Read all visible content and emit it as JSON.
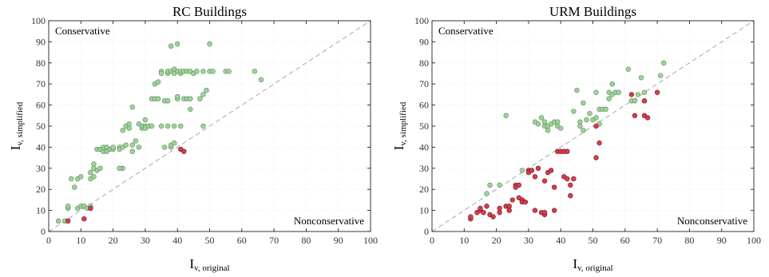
{
  "colors": {
    "conservative": "#9fd39a",
    "conservative_edge": "#5a8a55",
    "nonconservative": "#d43d4d",
    "nonconservative_edge": "#7a1a24"
  },
  "chart_data": [
    {
      "type": "scatter",
      "title": "RC Buildings",
      "xlabel": {
        "main": "I",
        "sub": "v, original"
      },
      "ylabel": {
        "main": "I",
        "sub": "v, simplified"
      },
      "xlim": [
        0,
        100
      ],
      "ylim": [
        0,
        100
      ],
      "xticks": [
        0,
        10,
        20,
        30,
        40,
        50,
        60,
        70,
        80,
        90,
        100
      ],
      "yticks": [
        0,
        10,
        20,
        30,
        40,
        50,
        60,
        70,
        80,
        90,
        100
      ],
      "grid": true,
      "annotations": [
        {
          "text": "Conservative",
          "position": "top-left"
        },
        {
          "text": "Nonconservative",
          "position": "bottom-right"
        }
      ],
      "series": [
        {
          "class": "conservative",
          "points": [
            [
              3,
              5
            ],
            [
              5,
              5
            ],
            [
              6,
              11
            ],
            [
              6,
              12
            ],
            [
              7,
              25
            ],
            [
              8,
              21
            ],
            [
              9,
              25
            ],
            [
              10,
              26
            ],
            [
              9,
              11
            ],
            [
              10,
              12
            ],
            [
              11,
              12
            ],
            [
              12,
              11
            ],
            [
              13,
              12
            ],
            [
              13,
              25
            ],
            [
              13,
              28
            ],
            [
              14,
              32
            ],
            [
              14,
              26
            ],
            [
              14,
              30
            ],
            [
              15,
              29
            ],
            [
              15,
              39
            ],
            [
              16,
              39
            ],
            [
              16,
              30
            ],
            [
              17,
              38
            ],
            [
              17,
              40
            ],
            [
              18,
              38
            ],
            [
              18,
              40
            ],
            [
              19,
              39
            ],
            [
              20,
              39
            ],
            [
              20,
              40
            ],
            [
              22,
              40
            ],
            [
              22,
              39
            ],
            [
              23,
              40
            ],
            [
              23,
              30
            ],
            [
              22,
              30
            ],
            [
              23,
              48
            ],
            [
              24,
              50
            ],
            [
              24,
              41
            ],
            [
              25,
              51
            ],
            [
              25,
              49
            ],
            [
              26,
              38
            ],
            [
              26,
              59
            ],
            [
              26,
              41
            ],
            [
              27,
              43
            ],
            [
              28,
              40
            ],
            [
              28,
              51
            ],
            [
              29,
              49
            ],
            [
              29,
              50
            ],
            [
              30,
              50
            ],
            [
              30,
              49
            ],
            [
              30,
              53
            ],
            [
              31,
              50
            ],
            [
              32,
              63
            ],
            [
              32,
              50
            ],
            [
              33,
              63
            ],
            [
              33,
              70
            ],
            [
              34,
              63
            ],
            [
              34,
              71
            ],
            [
              35,
              76
            ],
            [
              35,
              75
            ],
            [
              35,
              50
            ],
            [
              36,
              40
            ],
            [
              36,
              62
            ],
            [
              37,
              75
            ],
            [
              37,
              76
            ],
            [
              37,
              50
            ],
            [
              37,
              62
            ],
            [
              38,
              76
            ],
            [
              38,
              88
            ],
            [
              38,
              40
            ],
            [
              38,
              41
            ],
            [
              39,
              75
            ],
            [
              39,
              77
            ],
            [
              39,
              50
            ],
            [
              39,
              42
            ],
            [
              40,
              76
            ],
            [
              40,
              89
            ],
            [
              40,
              63
            ],
            [
              40,
              64
            ],
            [
              41,
              75
            ],
            [
              41,
              76
            ],
            [
              41,
              50
            ],
            [
              42,
              76
            ],
            [
              42,
              63
            ],
            [
              43,
              76
            ],
            [
              43,
              63
            ],
            [
              44,
              76
            ],
            [
              44,
              63
            ],
            [
              44,
              58
            ],
            [
              45,
              75
            ],
            [
              46,
              76
            ],
            [
              47,
              63
            ],
            [
              48,
              76
            ],
            [
              48,
              50
            ],
            [
              48,
              65
            ],
            [
              49,
              67
            ],
            [
              50,
              89
            ],
            [
              50,
              76
            ],
            [
              51,
              76
            ],
            [
              55,
              76
            ],
            [
              56,
              76
            ],
            [
              64,
              76
            ],
            [
              66,
              72
            ]
          ]
        },
        {
          "class": "nonconservative",
          "points": [
            [
              6,
              5
            ],
            [
              11,
              6
            ],
            [
              13,
              11
            ],
            [
              41,
              39
            ],
            [
              42,
              38
            ]
          ]
        }
      ]
    },
    {
      "type": "scatter",
      "title": "URM Buildings",
      "xlabel": {
        "main": "I",
        "sub": "v, original"
      },
      "ylabel": {
        "main": "I",
        "sub": "v, simplified"
      },
      "xlim": [
        0,
        100
      ],
      "ylim": [
        0,
        100
      ],
      "xticks": [
        0,
        10,
        20,
        30,
        40,
        50,
        60,
        70,
        80,
        90,
        100
      ],
      "yticks": [
        0,
        10,
        20,
        30,
        40,
        50,
        60,
        70,
        80,
        90,
        100
      ],
      "grid": true,
      "annotations": [
        {
          "text": "Conservative",
          "position": "top-left"
        },
        {
          "text": "Nonconservative",
          "position": "bottom-right"
        }
      ],
      "series": [
        {
          "class": "conservative",
          "points": [
            [
              17,
              18
            ],
            [
              18,
              22
            ],
            [
              21,
              22
            ],
            [
              23,
              55
            ],
            [
              28,
              29
            ],
            [
              32,
              52
            ],
            [
              33,
              51
            ],
            [
              34,
              54
            ],
            [
              35,
              52
            ],
            [
              35,
              50
            ],
            [
              36,
              48
            ],
            [
              36,
              50
            ],
            [
              37,
              51
            ],
            [
              38,
              52
            ],
            [
              39,
              50
            ],
            [
              39,
              52
            ],
            [
              40,
              49
            ],
            [
              44,
              57
            ],
            [
              45,
              67
            ],
            [
              46,
              52
            ],
            [
              46,
              50
            ],
            [
              47,
              61
            ],
            [
              47,
              48
            ],
            [
              48,
              53
            ],
            [
              49,
              56
            ],
            [
              50,
              53
            ],
            [
              51,
              66
            ],
            [
              51,
              54
            ],
            [
              52,
              51
            ],
            [
              52,
              58
            ],
            [
              53,
              58
            ],
            [
              54,
              58
            ],
            [
              55,
              63
            ],
            [
              55,
              66
            ],
            [
              56,
              70
            ],
            [
              56,
              65
            ],
            [
              57,
              66
            ],
            [
              58,
              66
            ],
            [
              61,
              77
            ],
            [
              62,
              62
            ],
            [
              63,
              62
            ],
            [
              64,
              65
            ],
            [
              65,
              73
            ],
            [
              66,
              66
            ],
            [
              71,
              74
            ],
            [
              72,
              80
            ]
          ]
        },
        {
          "class": "nonconservative",
          "points": [
            [
              12,
              6
            ],
            [
              12,
              7
            ],
            [
              14,
              9
            ],
            [
              15,
              10
            ],
            [
              15,
              11
            ],
            [
              16,
              9
            ],
            [
              17,
              12
            ],
            [
              18,
              8
            ],
            [
              19,
              7
            ],
            [
              21,
              11
            ],
            [
              21,
              9
            ],
            [
              23,
              12
            ],
            [
              24,
              12
            ],
            [
              24,
              10
            ],
            [
              25,
              15
            ],
            [
              26,
              22
            ],
            [
              26,
              21
            ],
            [
              27,
              16
            ],
            [
              27,
              22
            ],
            [
              28,
              15
            ],
            [
              28,
              14
            ],
            [
              29,
              14
            ],
            [
              30,
              29
            ],
            [
              30,
              28
            ],
            [
              31,
              29
            ],
            [
              32,
              10
            ],
            [
              32,
              26
            ],
            [
              33,
              30
            ],
            [
              34,
              9
            ],
            [
              35,
              24
            ],
            [
              35,
              8
            ],
            [
              35,
              9
            ],
            [
              36,
              28
            ],
            [
              37,
              29
            ],
            [
              38,
              10
            ],
            [
              38,
              21
            ],
            [
              39,
              38
            ],
            [
              40,
              38
            ],
            [
              41,
              26
            ],
            [
              41,
              38
            ],
            [
              42,
              25
            ],
            [
              42,
              38
            ],
            [
              43,
              17
            ],
            [
              43,
              22
            ],
            [
              44,
              25
            ],
            [
              51,
              35
            ],
            [
              51,
              50
            ],
            [
              52,
              42
            ],
            [
              62,
              65
            ],
            [
              63,
              55
            ],
            [
              66,
              62
            ],
            [
              66,
              55
            ],
            [
              67,
              54
            ],
            [
              70,
              66
            ]
          ]
        }
      ]
    }
  ]
}
